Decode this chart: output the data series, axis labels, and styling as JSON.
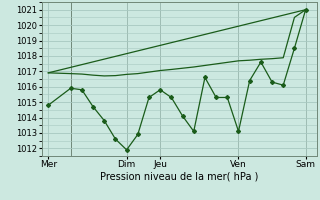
{
  "bg_color": "#cce8e0",
  "grid_color": "#a8c8c0",
  "line_color": "#1a5c1a",
  "marker_color": "#1a5c1a",
  "xlabel": "Pression niveau de la mer( hPa )",
  "ylim": [
    1011.5,
    1021.5
  ],
  "yticks": [
    1012,
    1013,
    1014,
    1015,
    1016,
    1017,
    1018,
    1019,
    1020,
    1021
  ],
  "xtick_labels": [
    "Mer",
    "Dim",
    "Jeu",
    "Ven",
    "Sam"
  ],
  "xtick_positions": [
    0,
    35,
    50,
    85,
    115
  ],
  "vline_positions": [
    10,
    35,
    50,
    85,
    115
  ],
  "line1_x": [
    0,
    10,
    15,
    20,
    25,
    30,
    35,
    40,
    45,
    50,
    55,
    60,
    65,
    70,
    75,
    80,
    85,
    90,
    95,
    100,
    105,
    110,
    115
  ],
  "line1_y": [
    1014.8,
    1015.9,
    1015.8,
    1014.7,
    1013.8,
    1012.6,
    1011.9,
    1012.9,
    1015.3,
    1015.8,
    1015.3,
    1014.1,
    1013.1,
    1016.6,
    1015.3,
    1015.3,
    1013.1,
    1016.4,
    1017.6,
    1016.3,
    1016.1,
    1018.5,
    1021.0
  ],
  "line2_x": [
    0,
    115
  ],
  "line2_y": [
    1016.9,
    1021.0
  ],
  "line3_x": [
    0,
    10,
    15,
    20,
    25,
    30,
    35,
    40,
    45,
    50,
    55,
    60,
    65,
    70,
    75,
    80,
    85,
    90,
    95,
    100,
    105,
    110,
    115
  ],
  "line3_y": [
    1016.9,
    1016.85,
    1016.82,
    1016.75,
    1016.7,
    1016.72,
    1016.8,
    1016.85,
    1016.95,
    1017.05,
    1017.12,
    1017.2,
    1017.28,
    1017.38,
    1017.48,
    1017.58,
    1017.68,
    1017.72,
    1017.78,
    1017.82,
    1017.88,
    1020.5,
    1021.0
  ],
  "xlim": [
    -3,
    120
  ],
  "ylabel_fontsize": 6,
  "xlabel_fontsize": 7,
  "xtick_fontsize": 6.5,
  "ytick_fontsize": 6
}
